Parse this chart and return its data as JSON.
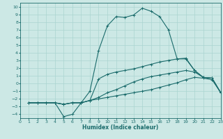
{
  "xlabel": "Humidex (Indice chaleur)",
  "xlim": [
    0,
    23
  ],
  "ylim": [
    -4.5,
    10.5
  ],
  "xticks": [
    0,
    1,
    2,
    3,
    4,
    5,
    6,
    7,
    8,
    9,
    10,
    11,
    12,
    13,
    14,
    15,
    16,
    17,
    18,
    19,
    20,
    21,
    22,
    23
  ],
  "yticks": [
    -4,
    -3,
    -2,
    -1,
    0,
    1,
    2,
    3,
    4,
    5,
    6,
    7,
    8,
    9,
    10
  ],
  "bg_color": "#cce8e5",
  "grid_color": "#aad4d0",
  "line_color": "#1a6b6b",
  "lines": [
    {
      "x": [
        1,
        2,
        3,
        4,
        5,
        6,
        7,
        8,
        9,
        10,
        11,
        12,
        13,
        14,
        15,
        16,
        17,
        18,
        19,
        20,
        21,
        22,
        23
      ],
      "y": [
        -2.5,
        -2.5,
        -2.5,
        -2.5,
        -4.3,
        -4.0,
        -2.5,
        -1.0,
        4.3,
        7.5,
        8.7,
        8.6,
        8.9,
        9.8,
        9.4,
        8.7,
        7.0,
        3.2,
        3.2,
        1.7,
        0.8,
        0.7,
        -1.2
      ]
    },
    {
      "x": [
        1,
        2,
        3,
        4,
        5,
        6,
        7,
        8,
        9,
        10,
        11,
        12,
        13,
        14,
        15,
        16,
        17,
        18,
        19,
        20,
        21,
        22,
        23
      ],
      "y": [
        -2.5,
        -2.5,
        -2.5,
        -2.5,
        -2.7,
        -2.5,
        -2.5,
        -2.2,
        0.6,
        1.2,
        1.5,
        1.7,
        1.9,
        2.2,
        2.5,
        2.8,
        3.0,
        3.2,
        3.3,
        1.7,
        0.8,
        0.7,
        -1.2
      ]
    },
    {
      "x": [
        1,
        2,
        3,
        4,
        5,
        6,
        7,
        8,
        9,
        10,
        11,
        12,
        13,
        14,
        15,
        16,
        17,
        18,
        19,
        20,
        21,
        22,
        23
      ],
      "y": [
        -2.5,
        -2.5,
        -2.5,
        -2.5,
        -2.7,
        -2.5,
        -2.5,
        -2.2,
        -1.8,
        -1.2,
        -0.8,
        -0.3,
        0.2,
        0.6,
        0.9,
        1.1,
        1.3,
        1.5,
        1.7,
        1.5,
        0.8,
        0.7,
        -1.2
      ]
    },
    {
      "x": [
        1,
        2,
        3,
        4,
        5,
        6,
        7,
        8,
        9,
        10,
        11,
        12,
        13,
        14,
        15,
        16,
        17,
        18,
        19,
        20,
        21,
        22,
        23
      ],
      "y": [
        -2.5,
        -2.5,
        -2.5,
        -2.5,
        -2.7,
        -2.5,
        -2.5,
        -2.2,
        -2.0,
        -1.8,
        -1.6,
        -1.4,
        -1.2,
        -1.0,
        -0.8,
        -0.5,
        -0.2,
        0.1,
        0.5,
        0.8,
        0.7,
        0.5,
        -1.2
      ]
    }
  ]
}
